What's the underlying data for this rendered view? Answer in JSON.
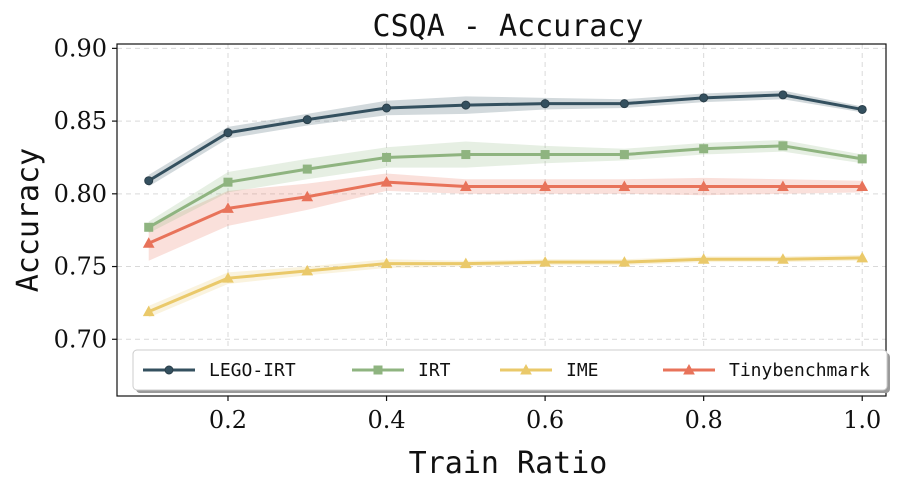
{
  "chart_data": {
    "type": "line",
    "title": "CSQA - Accuracy",
    "xlabel": "Train Ratio",
    "ylabel": "Accuracy",
    "xlim": [
      0.06,
      1.03
    ],
    "ylim": [
      0.661,
      0.903
    ],
    "xticks": [
      0.2,
      0.4,
      0.6,
      0.8,
      1.0
    ],
    "xtick_labels": [
      "0.2",
      "0.4",
      "0.6",
      "0.8",
      "1.0"
    ],
    "yticks": [
      0.7,
      0.75,
      0.8,
      0.85,
      0.9
    ],
    "ytick_labels": [
      "0.70",
      "0.75",
      "0.80",
      "0.85",
      "0.90"
    ],
    "grid": true,
    "legend_position": "bottom",
    "x": [
      0.1,
      0.2,
      0.3,
      0.4,
      0.5,
      0.6,
      0.7,
      0.8,
      0.9,
      1.0
    ],
    "series": [
      {
        "name": "LEGO-IRT",
        "color": "#34505f",
        "marker": "circle",
        "values": [
          0.809,
          0.842,
          0.851,
          0.859,
          0.861,
          0.862,
          0.862,
          0.866,
          0.868,
          0.858
        ],
        "band": [
          0.004,
          0.004,
          0.004,
          0.005,
          0.006,
          0.004,
          0.003,
          0.003,
          0.003,
          0.002
        ]
      },
      {
        "name": "IRT",
        "color": "#8fb480",
        "marker": "square",
        "values": [
          0.777,
          0.808,
          0.817,
          0.825,
          0.827,
          0.827,
          0.827,
          0.831,
          0.833,
          0.824
        ],
        "band": [
          0.004,
          0.007,
          0.007,
          0.007,
          0.009,
          0.006,
          0.004,
          0.004,
          0.004,
          0.003
        ]
      },
      {
        "name": "IME",
        "color": "#eac96a",
        "marker": "triangle",
        "values": [
          0.719,
          0.742,
          0.747,
          0.752,
          0.752,
          0.753,
          0.753,
          0.755,
          0.755,
          0.756
        ],
        "band": [
          0.004,
          0.004,
          0.003,
          0.003,
          0.002,
          0.002,
          0.002,
          0.002,
          0.002,
          0.002
        ]
      },
      {
        "name": "Tinybenchmark",
        "color": "#e8735a",
        "marker": "triangle",
        "values": [
          0.766,
          0.79,
          0.798,
          0.808,
          0.805,
          0.805,
          0.805,
          0.805,
          0.805,
          0.805
        ],
        "band": [
          0.012,
          0.012,
          0.009,
          0.006,
          0.005,
          0.005,
          0.005,
          0.006,
          0.005,
          0.004
        ]
      }
    ]
  }
}
